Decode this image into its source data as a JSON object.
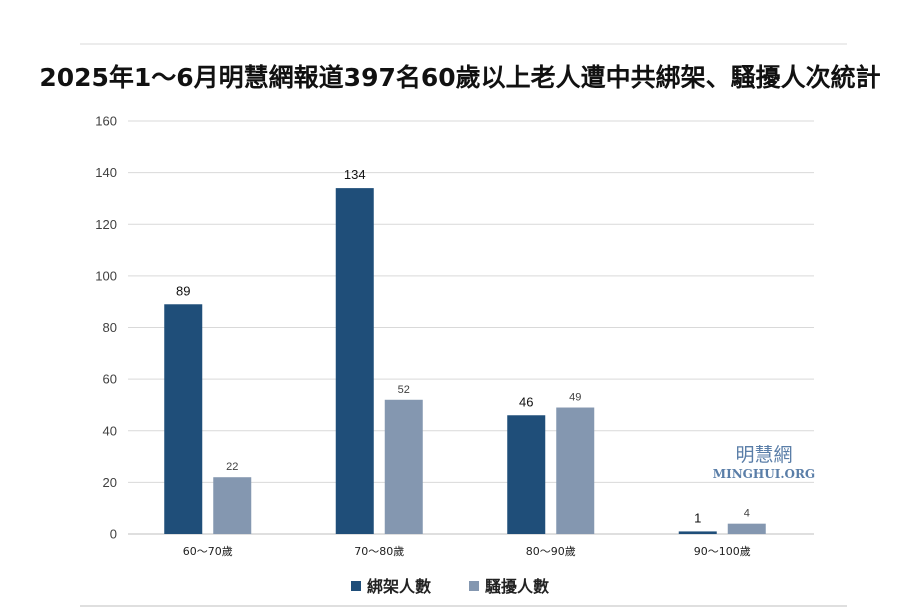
{
  "chart_data": {
    "type": "bar",
    "title": "2025年1～6月明慧網報道397名60歲以上老人遭中共綁架、騷擾人次統計",
    "categories": [
      "60～70歲",
      "70～80歲",
      "80～90歲",
      "90～100歲"
    ],
    "series": [
      {
        "name": "綁架人數",
        "values": [
          89,
          134,
          46,
          1
        ],
        "color": "#1f4e79"
      },
      {
        "name": "騷擾人數",
        "values": [
          22,
          52,
          49,
          4
        ],
        "color": "#8497b0"
      }
    ],
    "ylim": [
      0,
      160
    ],
    "yticks": [
      0,
      20,
      40,
      60,
      80,
      100,
      120,
      140,
      160
    ],
    "grid": true,
    "legend_position": "bottom"
  },
  "watermark": {
    "chinese": "明慧網",
    "english": "MINGHUI.ORG"
  }
}
